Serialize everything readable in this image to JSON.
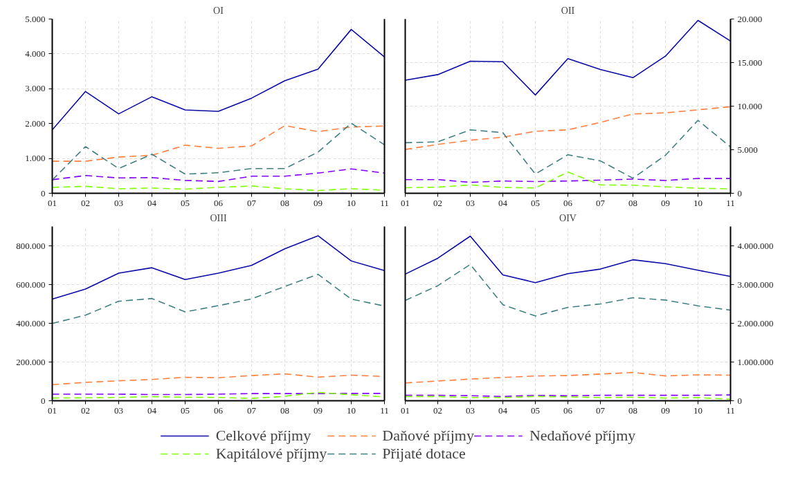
{
  "chart_data": [
    {
      "type": "line",
      "title": "OI",
      "categories": [
        "01",
        "02",
        "03",
        "04",
        "05",
        "06",
        "07",
        "08",
        "09",
        "10",
        "11"
      ],
      "ylim": [
        0,
        5000
      ],
      "yticks": [
        {
          "value": 0,
          "label": "0"
        },
        {
          "value": 1000,
          "label": "1.000"
        },
        {
          "value": 2000,
          "label": "2.000"
        },
        {
          "value": 3000,
          "label": "3.000"
        },
        {
          "value": 4000,
          "label": "4.000"
        },
        {
          "value": 5000,
          "label": "5.000"
        }
      ],
      "grid": true,
      "legend": "bottom",
      "series": [
        {
          "name": "Celkové příjmy",
          "color": "#0a0aa8",
          "line_style": "solid",
          "values": [
            1820,
            2920,
            2280,
            2770,
            2390,
            2350,
            2730,
            3230,
            3560,
            4700,
            3910
          ]
        },
        {
          "name": "Daňové příjmy",
          "color": "#ff8040",
          "line_style": "dashed",
          "values": [
            920,
            920,
            1040,
            1090,
            1380,
            1290,
            1360,
            1940,
            1770,
            1900,
            1930
          ]
        },
        {
          "name": "Nedaňové příjmy",
          "color": "#8000ff",
          "line_style": "dashed",
          "values": [
            390,
            510,
            440,
            450,
            370,
            340,
            490,
            490,
            580,
            700,
            580
          ]
        },
        {
          "name": "Kapitálové příjmy",
          "color": "#80ff00",
          "line_style": "dashed",
          "values": [
            170,
            200,
            130,
            150,
            120,
            170,
            210,
            130,
            80,
            130,
            90
          ]
        },
        {
          "name": "Přijaté dotace",
          "color": "#408080",
          "line_style": "dashed",
          "values": [
            380,
            1340,
            710,
            1120,
            550,
            590,
            710,
            710,
            1180,
            2010,
            1390
          ]
        }
      ]
    },
    {
      "type": "line",
      "title": "OII",
      "categories": [
        "01",
        "02",
        "03",
        "04",
        "05",
        "06",
        "07",
        "08",
        "09",
        "10",
        "11"
      ],
      "ylim": [
        0,
        20000
      ],
      "yticks": [
        {
          "value": 0,
          "label": "0"
        },
        {
          "value": 5000,
          "label": "5.000"
        },
        {
          "value": 10000,
          "label": "10.000"
        },
        {
          "value": 15000,
          "label": "15.000"
        },
        {
          "value": 20000,
          "label": "20.000"
        }
      ],
      "grid": true,
      "series": [
        {
          "color": "#0a0aa8",
          "line_style": "solid",
          "values": [
            12980,
            13620,
            15160,
            15100,
            11280,
            15450,
            14200,
            13270,
            15740,
            19840,
            17470
          ]
        },
        {
          "color": "#ff8040",
          "line_style": "dashed",
          "values": [
            5030,
            5610,
            6090,
            6440,
            7120,
            7280,
            8140,
            9100,
            9230,
            9580,
            9940
          ]
        },
        {
          "color": "#8000ff",
          "line_style": "dashed",
          "values": [
            1570,
            1570,
            1250,
            1410,
            1350,
            1410,
            1510,
            1630,
            1470,
            1700,
            1700
          ]
        },
        {
          "color": "#80ff00",
          "line_style": "dashed",
          "values": [
            640,
            700,
            960,
            670,
            610,
            2440,
            960,
            930,
            740,
            580,
            510
          ]
        },
        {
          "color": "#408080",
          "line_style": "dashed",
          "values": [
            5800,
            5900,
            7280,
            6960,
            2210,
            4420,
            3720,
            1730,
            4360,
            8370,
            5320
          ]
        }
      ]
    },
    {
      "type": "line",
      "title": "OIII",
      "categories": [
        "01",
        "02",
        "03",
        "04",
        "05",
        "06",
        "07",
        "08",
        "09",
        "10",
        "11"
      ],
      "ylim": [
        0,
        900000
      ],
      "yticks": [
        {
          "value": 0,
          "label": "0"
        },
        {
          "value": 200000,
          "label": "200.000"
        },
        {
          "value": 400000,
          "label": "400.000"
        },
        {
          "value": 600000,
          "label": "600.000"
        },
        {
          "value": 800000,
          "label": "800.000"
        }
      ],
      "grid": true,
      "series": [
        {
          "color": "#0a0aa8",
          "line_style": "solid",
          "values": [
            525000,
            577000,
            659000,
            687000,
            626000,
            659000,
            699000,
            785000,
            852000,
            722000,
            672000
          ]
        },
        {
          "color": "#ff8040",
          "line_style": "dashed",
          "values": [
            83000,
            95000,
            103000,
            110000,
            121000,
            119000,
            130000,
            139000,
            122000,
            132000,
            125000
          ]
        },
        {
          "color": "#8000ff",
          "line_style": "dashed",
          "values": [
            34000,
            34000,
            34000,
            32000,
            32000,
            34000,
            37000,
            37000,
            37000,
            38000,
            38000
          ]
        },
        {
          "color": "#80ff00",
          "line_style": "dashed",
          "values": [
            14000,
            15000,
            17000,
            21000,
            18000,
            17000,
            12000,
            23000,
            43000,
            31000,
            20000
          ]
        },
        {
          "color": "#408080",
          "line_style": "dashed",
          "values": [
            399000,
            442000,
            514000,
            528000,
            459000,
            491000,
            526000,
            590000,
            653000,
            525000,
            489000
          ]
        }
      ]
    },
    {
      "type": "line",
      "title": "OIV",
      "categories": [
        "01",
        "02",
        "03",
        "04",
        "05",
        "06",
        "07",
        "08",
        "09",
        "10",
        "11"
      ],
      "ylim": [
        0,
        4500000
      ],
      "yticks": [
        {
          "value": 0,
          "label": "0"
        },
        {
          "value": 1000000,
          "label": "1.000.000"
        },
        {
          "value": 2000000,
          "label": "2.000.000"
        },
        {
          "value": 3000000,
          "label": "3.000.000"
        },
        {
          "value": 4000000,
          "label": "4.000.000"
        }
      ],
      "grid": true,
      "series": [
        {
          "color": "#0a0aa8",
          "line_style": "solid",
          "values": [
            3270000,
            3680000,
            4250000,
            3250000,
            3050000,
            3280000,
            3400000,
            3640000,
            3540000,
            3370000,
            3210000
          ]
        },
        {
          "color": "#ff8040",
          "line_style": "dashed",
          "values": [
            460000,
            510000,
            560000,
            600000,
            640000,
            650000,
            690000,
            730000,
            640000,
            670000,
            660000
          ]
        },
        {
          "color": "#8000ff",
          "line_style": "dashed",
          "values": [
            140000,
            140000,
            130000,
            110000,
            140000,
            130000,
            140000,
            140000,
            140000,
            140000,
            150000
          ]
        },
        {
          "color": "#80ff00",
          "line_style": "dashed",
          "values": [
            110000,
            110000,
            80000,
            80000,
            110000,
            100000,
            80000,
            90000,
            70000,
            80000,
            40000
          ]
        },
        {
          "color": "#408080",
          "line_style": "dashed",
          "values": [
            2590000,
            2970000,
            3520000,
            2480000,
            2190000,
            2410000,
            2500000,
            2660000,
            2600000,
            2450000,
            2340000
          ]
        }
      ]
    }
  ]
}
